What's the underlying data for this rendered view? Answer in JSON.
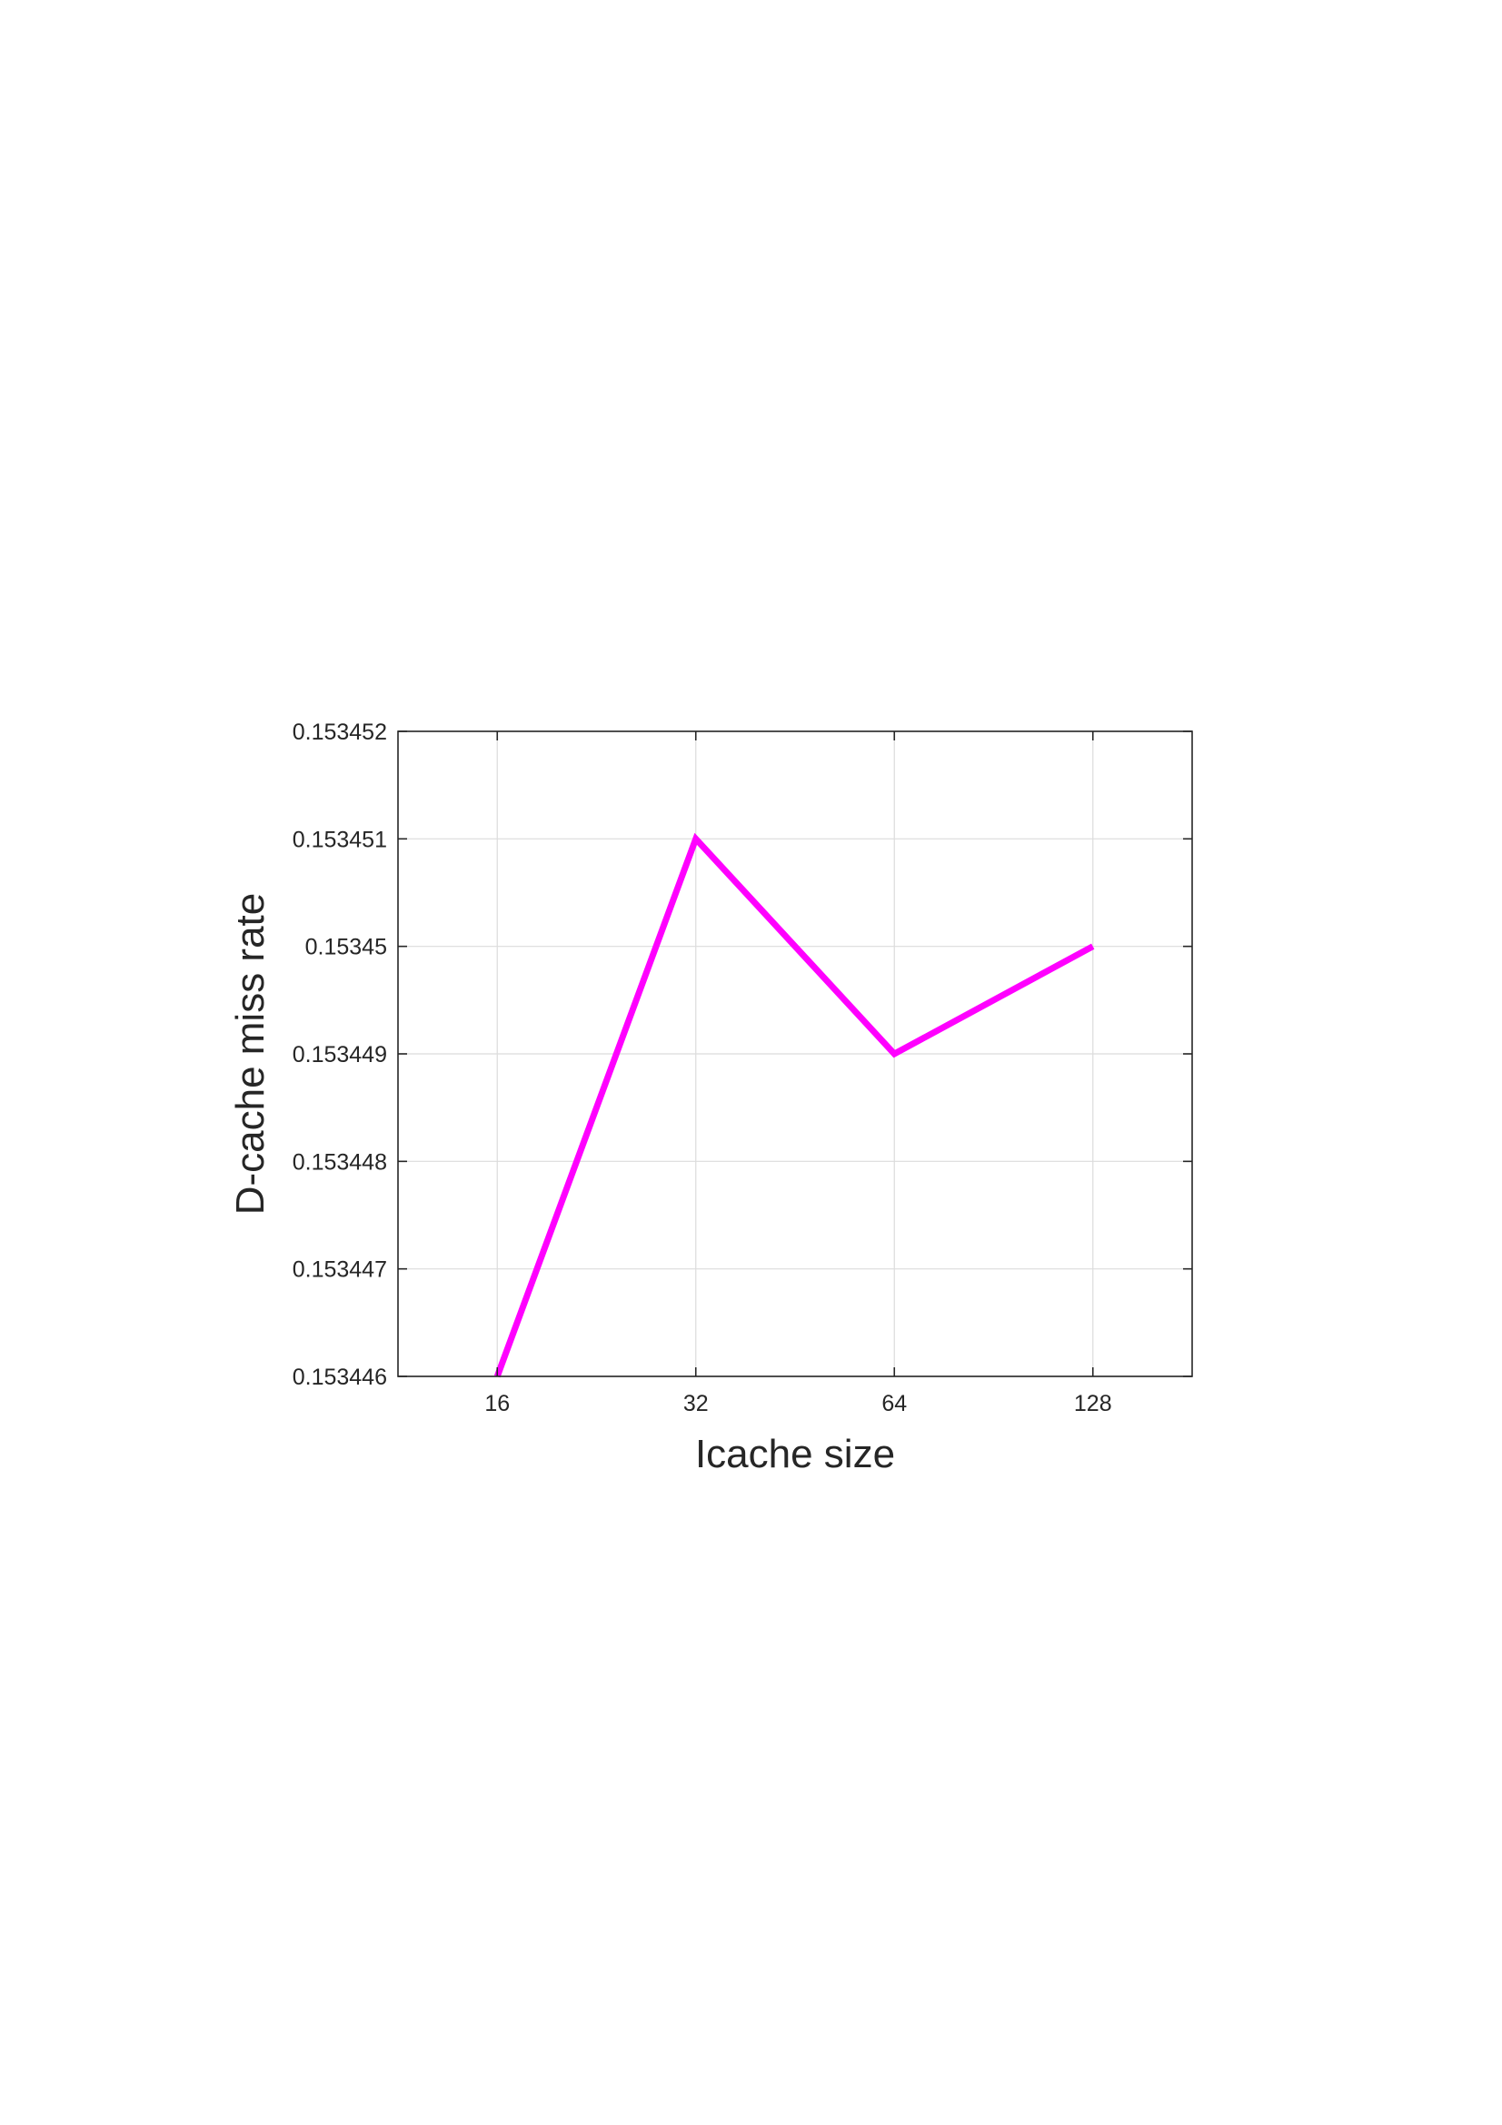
{
  "chart_data": {
    "type": "line",
    "title": "",
    "xlabel": "Icache size",
    "ylabel": "D-cache miss rate",
    "categories": [
      "16",
      "32",
      "64",
      "128"
    ],
    "series": [
      {
        "values": [
          0.153446,
          0.153451,
          0.153449,
          0.15345
        ],
        "color": "#ff00ff"
      }
    ],
    "ylim": [
      0.153446,
      0.153452
    ],
    "yticks": [
      {
        "value": 0.153446,
        "label": "0.153446"
      },
      {
        "value": 0.153447,
        "label": "0.153447"
      },
      {
        "value": 0.153448,
        "label": "0.153448"
      },
      {
        "value": 0.153449,
        "label": "0.153449"
      },
      {
        "value": 0.15345,
        "label": "0.15345"
      },
      {
        "value": 0.153451,
        "label": "0.153451"
      },
      {
        "value": 0.153452,
        "label": "0.153452"
      }
    ],
    "xlim": [
      0.5,
      4.5
    ],
    "grid": true,
    "legend": "none"
  }
}
